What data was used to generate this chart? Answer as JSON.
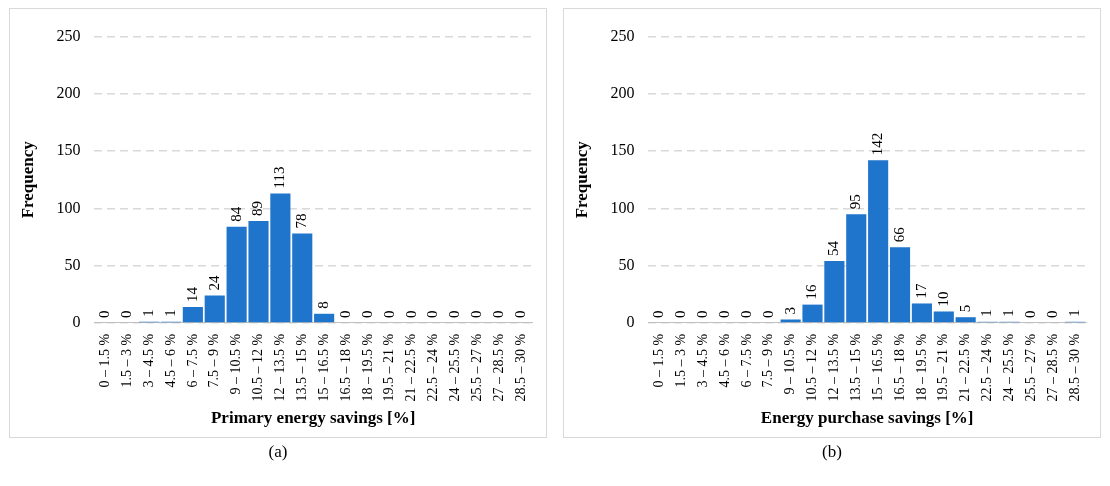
{
  "chart_data": [
    {
      "type": "bar",
      "categories": [
        "0 – 1.5 %",
        "1.5 – 3 %",
        "3 – 4.5 %",
        "4.5 – 6 %",
        "6 – 7.5 %",
        "7.5 – 9 %",
        "9 – 10.5 %",
        "10.5 – 12 %",
        "12 – 13.5 %",
        "13.5 – 15 %",
        "15 – 16.5 %",
        "16.5 – 18 %",
        "18 – 19.5 %",
        "19.5 – 21 %",
        "21 – 22.5 %",
        "22.5 – 24 %",
        "24 – 25.5 %",
        "25.5 – 27 %",
        "27 – 28.5 %",
        "28.5 – 30 %"
      ],
      "values": [
        0,
        0,
        1,
        1,
        14,
        24,
        84,
        89,
        113,
        78,
        8,
        0,
        0,
        0,
        0,
        0,
        0,
        0,
        0,
        0
      ],
      "color": "#1f74cc",
      "xlabel": "Primary energy savings [%]",
      "ylabel": "Frequency",
      "ylim": [
        0,
        250
      ],
      "yticks": [
        0,
        50,
        100,
        150,
        200,
        250
      ],
      "grid": "y",
      "data_labels": true,
      "annotations": [
        "(a)"
      ]
    },
    {
      "type": "bar",
      "categories": [
        "0 – 1.5 %",
        "1.5 – 3 %",
        "3 – 4.5 %",
        "4.5 – 6 %",
        "6 – 7.5 %",
        "7.5 – 9 %",
        "9 – 10.5 %",
        "10.5 – 12 %",
        "12 – 13.5 %",
        "13.5 – 15 %",
        "15 – 16.5 %",
        "16.5 – 18 %",
        "18 – 19.5 %",
        "19.5 – 21 %",
        "21 – 22.5 %",
        "22.5 – 24 %",
        "24 – 25.5 %",
        "25.5 – 27 %",
        "27 – 28.5 %",
        "28.5 – 30 %"
      ],
      "values": [
        0,
        0,
        0,
        0,
        0,
        0,
        3,
        16,
        54,
        95,
        142,
        66,
        17,
        10,
        5,
        1,
        1,
        0,
        0,
        1
      ],
      "color": "#1f74cc",
      "xlabel": "Energy purchase savings [%]",
      "ylabel": "Frequency",
      "ylim": [
        0,
        250
      ],
      "yticks": [
        0,
        50,
        100,
        150,
        200,
        250
      ],
      "grid": "y",
      "data_labels": true,
      "annotations": [
        "(b)"
      ]
    }
  ]
}
